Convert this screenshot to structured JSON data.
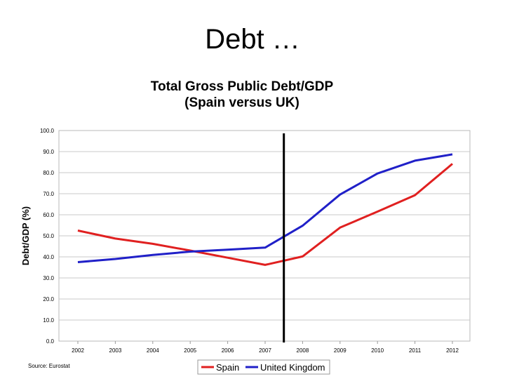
{
  "slide": {
    "title": "Debt …"
  },
  "chart_data": {
    "type": "line",
    "title_line1": "Total Gross Public Debt/GDP",
    "title_line2": "(Spain versus UK)",
    "ylabel": "Debt/GDP (%)",
    "source": "Source: Eurostat",
    "categories": [
      "2002",
      "2003",
      "2004",
      "2005",
      "2006",
      "2007",
      "2008",
      "2009",
      "2010",
      "2011",
      "2012"
    ],
    "y_ticks": [
      "0.0",
      "10.0",
      "20.0",
      "30.0",
      "40.0",
      "50.0",
      "60.0",
      "70.0",
      "80.0",
      "90.0",
      "100.0"
    ],
    "ylim": [
      0,
      100
    ],
    "grid": true,
    "legend_position": "bottom",
    "marker_line_x": 2007.5,
    "series": [
      {
        "name": "Spain",
        "color": "#e02020",
        "values": [
          52.5,
          48.7,
          46.2,
          43.0,
          39.6,
          36.2,
          40.2,
          53.9,
          61.5,
          69.3,
          84.2
        ]
      },
      {
        "name": "United Kingdom",
        "color": "#2020c8",
        "values": [
          37.5,
          39.0,
          40.9,
          42.5,
          43.4,
          44.4,
          54.8,
          69.6,
          79.6,
          85.7,
          88.7
        ]
      }
    ]
  }
}
